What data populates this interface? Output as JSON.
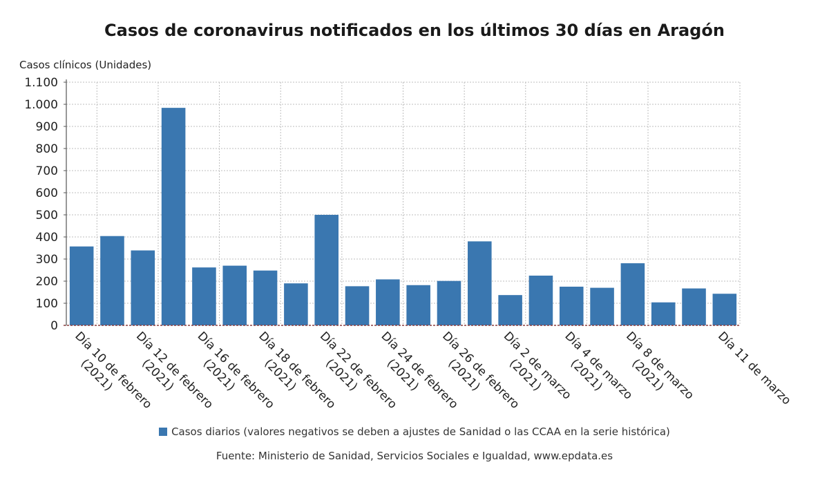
{
  "chart_data": {
    "type": "bar",
    "title": "Casos de coronavirus notificados en los últimos 30 días en Aragón",
    "ylabel": "Casos clínicos (Unidades)",
    "ylim": [
      0,
      1100
    ],
    "yticks": [
      {
        "value": 0,
        "label": "0"
      },
      {
        "value": 100,
        "label": "100"
      },
      {
        "value": 200,
        "label": "200"
      },
      {
        "value": 300,
        "label": "300"
      },
      {
        "value": 400,
        "label": "400"
      },
      {
        "value": 500,
        "label": "500"
      },
      {
        "value": 600,
        "label": "600"
      },
      {
        "value": 700,
        "label": "700"
      },
      {
        "value": 800,
        "label": "800"
      },
      {
        "value": 900,
        "label": "900"
      },
      {
        "value": 1000,
        "label": "1.000"
      },
      {
        "value": 1100,
        "label": "1.100"
      }
    ],
    "xtick_labels": [
      {
        "at_bar": 0,
        "lines": [
          "Día 10 de febrero",
          "(2021)"
        ]
      },
      {
        "at_bar": 2,
        "lines": [
          "Día 12 de febrero",
          "(2021)"
        ]
      },
      {
        "at_bar": 4,
        "lines": [
          "Día 16 de febrero",
          "(2021)"
        ]
      },
      {
        "at_bar": 6,
        "lines": [
          "Día 18 de febrero",
          "(2021)"
        ]
      },
      {
        "at_bar": 8,
        "lines": [
          "Día 22 de febrero",
          "(2021)"
        ]
      },
      {
        "at_bar": 10,
        "lines": [
          "Día 24 de febrero",
          "(2021)"
        ]
      },
      {
        "at_bar": 12,
        "lines": [
          "Día 26 de febrero",
          "(2021)"
        ]
      },
      {
        "at_bar": 14,
        "lines": [
          "Día 2 de marzo",
          "(2021)"
        ]
      },
      {
        "at_bar": 16,
        "lines": [
          "Día 4 de marzo",
          "(2021)"
        ]
      },
      {
        "at_bar": 18,
        "lines": [
          "Día 8 de marzo",
          "(2021)"
        ]
      },
      {
        "at_bar": 21,
        "lines": [
          "Día 11 de marzo"
        ]
      }
    ],
    "series": [
      {
        "name": "Casos diarios (valores negativos se deben a ajustes de Sanidad o las CCAA en la serie histórica)",
        "color": "#3a77b0",
        "values": [
          357,
          404,
          339,
          984,
          262,
          270,
          248,
          190,
          500,
          177,
          208,
          182,
          201,
          380,
          137,
          225,
          175,
          170,
          281,
          104,
          167,
          143
        ]
      }
    ],
    "grid": true,
    "legend_position": "bottom"
  },
  "source": "Fuente: Ministerio de Sanidad, Servicios Sociales e Igualdad, www.epdata.es"
}
